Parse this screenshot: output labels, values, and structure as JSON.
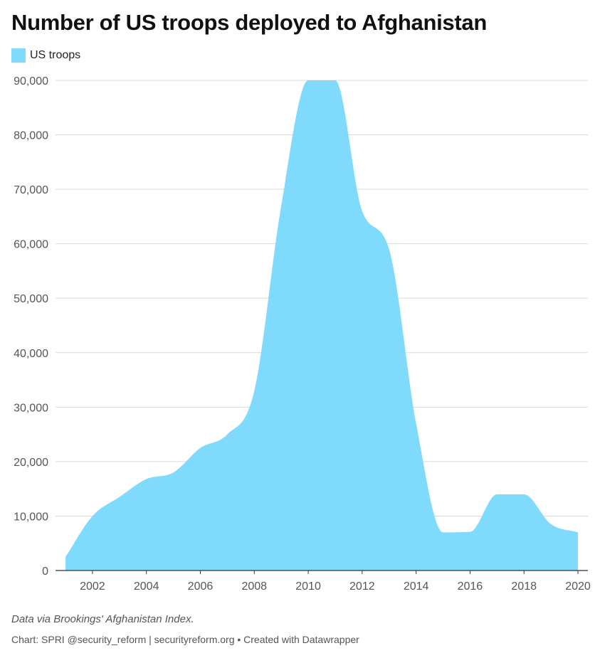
{
  "title": "Number of US troops deployed to Afghanistan",
  "note": "Data via Brookings' Afghanistan Index.",
  "credit": "Chart: SPRI @security_reform | securityreform.org • Created with Datawrapper",
  "colors": {
    "area": "#80dafc",
    "grid": "#d9d9d9",
    "axis": "#333333"
  },
  "chart_data": {
    "type": "area",
    "title": "Number of US troops deployed to Afghanistan",
    "xlabel": "",
    "ylabel": "",
    "xlim": [
      2001,
      2020
    ],
    "ylim": [
      0,
      90000
    ],
    "grid": true,
    "legend_position": "top-left",
    "x_ticks": [
      2002,
      2004,
      2006,
      2008,
      2010,
      2012,
      2014,
      2016,
      2018,
      2020
    ],
    "y_ticks": [
      0,
      10000,
      20000,
      30000,
      40000,
      50000,
      60000,
      70000,
      80000,
      90000
    ],
    "x_tick_labels": [
      "2002",
      "2004",
      "2006",
      "2008",
      "2010",
      "2012",
      "2014",
      "2016",
      "2018",
      "2020"
    ],
    "y_tick_labels": [
      "0",
      "10,000",
      "20,000",
      "30,000",
      "40,000",
      "50,000",
      "60,000",
      "70,000",
      "80,000",
      "90,000"
    ],
    "series": [
      {
        "name": "US troops",
        "color": "#80dafc",
        "x": [
          2001,
          2002,
          2003,
          2004,
          2005,
          2006,
          2007,
          2008,
          2009,
          2010,
          2011,
          2012,
          2013,
          2014,
          2015,
          2016,
          2017,
          2018,
          2019,
          2020
        ],
        "values": [
          2500,
          10000,
          13500,
          16800,
          18000,
          22500,
          25000,
          33000,
          67000,
          90000,
          90000,
          66000,
          59000,
          27000,
          7000,
          7100,
          14000,
          14000,
          8500,
          7000
        ]
      }
    ]
  }
}
